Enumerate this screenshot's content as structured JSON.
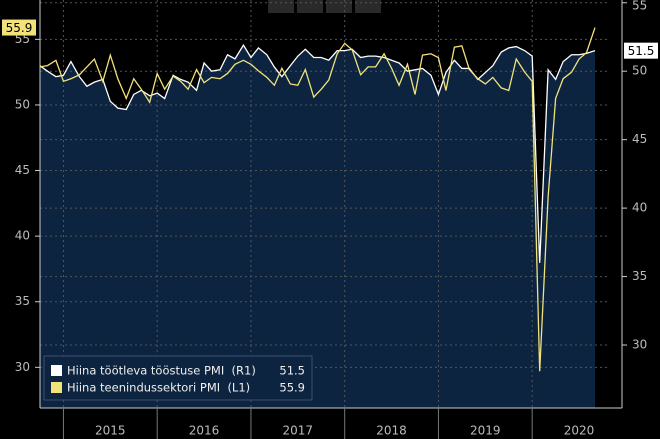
{
  "chart_data": {
    "type": "line",
    "x": [
      2014.75,
      2014.83,
      2014.92,
      2015.0,
      2015.08,
      2015.17,
      2015.25,
      2015.33,
      2015.42,
      2015.5,
      2015.58,
      2015.67,
      2015.75,
      2015.83,
      2015.92,
      2016.0,
      2016.08,
      2016.17,
      2016.25,
      2016.33,
      2016.42,
      2016.5,
      2016.58,
      2016.67,
      2016.75,
      2016.83,
      2016.92,
      2017.0,
      2017.08,
      2017.17,
      2017.25,
      2017.33,
      2017.42,
      2017.5,
      2017.58,
      2017.67,
      2017.75,
      2017.83,
      2017.92,
      2018.0,
      2018.08,
      2018.17,
      2018.25,
      2018.33,
      2018.42,
      2018.5,
      2018.58,
      2018.67,
      2018.75,
      2018.83,
      2018.92,
      2019.0,
      2019.08,
      2019.17,
      2019.25,
      2019.33,
      2019.42,
      2019.5,
      2019.58,
      2019.67,
      2019.75,
      2019.83,
      2019.92,
      2020.0,
      2020.08,
      2020.17,
      2020.25,
      2020.33,
      2020.42,
      2020.5,
      2020.58,
      2020.67
    ],
    "xlim": [
      2014.75,
      2020.83
    ],
    "xticks": [
      {
        "value": 2015.5,
        "label": "2015"
      },
      {
        "value": 2016.5,
        "label": "2016"
      },
      {
        "value": 2017.5,
        "label": "2017"
      },
      {
        "value": 2018.5,
        "label": "2018"
      },
      {
        "value": 2019.5,
        "label": "2019"
      },
      {
        "value": 2020.5,
        "label": "2020"
      }
    ],
    "ylim": [
      26.9,
      58
    ],
    "yticks": [
      30,
      35,
      40,
      45,
      50,
      55
    ],
    "y2lim": [
      25.4,
      55.2
    ],
    "y2ticks": [
      30,
      35,
      40,
      45,
      50,
      55
    ],
    "grid": true,
    "legend": "bottom-left",
    "series": [
      {
        "name": "Hiina töötleva tööstuse PMI  (R1)",
        "color": "#ffffff",
        "axis": "y2",
        "fill": "#0d2440",
        "values": [
          50.4,
          50.0,
          49.6,
          49.7,
          50.7,
          49.6,
          48.9,
          49.2,
          49.4,
          47.8,
          47.3,
          47.2,
          48.3,
          48.6,
          48.2,
          48.4,
          48.0,
          49.7,
          49.4,
          49.2,
          48.6,
          50.6,
          50.0,
          50.1,
          51.2,
          50.9,
          51.9,
          51.0,
          51.7,
          51.2,
          50.3,
          49.6,
          50.4,
          51.1,
          51.6,
          51.0,
          51.0,
          50.8,
          51.5,
          51.5,
          51.6,
          51.0,
          51.1,
          51.1,
          51.0,
          50.8,
          50.6,
          50.0,
          50.1,
          50.2,
          49.7,
          48.3,
          49.9,
          50.8,
          50.2,
          50.2,
          49.4,
          49.9,
          50.4,
          51.4,
          51.7,
          51.8,
          51.5,
          51.1,
          36.0,
          50.1,
          49.4,
          50.7,
          51.2,
          51.2,
          51.3,
          51.5
        ]
      },
      {
        "name": "Hiina teenindussektori PMI  (L1)",
        "color": "#f2e27a",
        "axis": "y",
        "values": [
          52.9,
          53.0,
          53.4,
          51.8,
          52.0,
          52.3,
          52.9,
          53.5,
          51.8,
          53.8,
          52.0,
          50.5,
          52.0,
          51.2,
          50.2,
          52.4,
          51.2,
          52.2,
          51.8,
          51.2,
          52.7,
          51.7,
          52.1,
          52.0,
          52.4,
          53.1,
          53.4,
          53.1,
          52.6,
          52.1,
          51.5,
          52.8,
          51.6,
          51.5,
          52.7,
          50.6,
          51.2,
          51.9,
          53.9,
          54.7,
          54.2,
          52.3,
          52.9,
          52.9,
          53.9,
          52.8,
          51.5,
          53.1,
          50.8,
          53.8,
          53.9,
          53.6,
          51.1,
          54.4,
          54.5,
          52.7,
          52.0,
          51.6,
          52.1,
          51.3,
          51.1,
          53.5,
          52.5,
          51.8,
          29.7,
          43.0,
          50.5,
          52.0,
          52.5,
          53.5,
          54.0,
          55.9
        ]
      }
    ]
  }
}
